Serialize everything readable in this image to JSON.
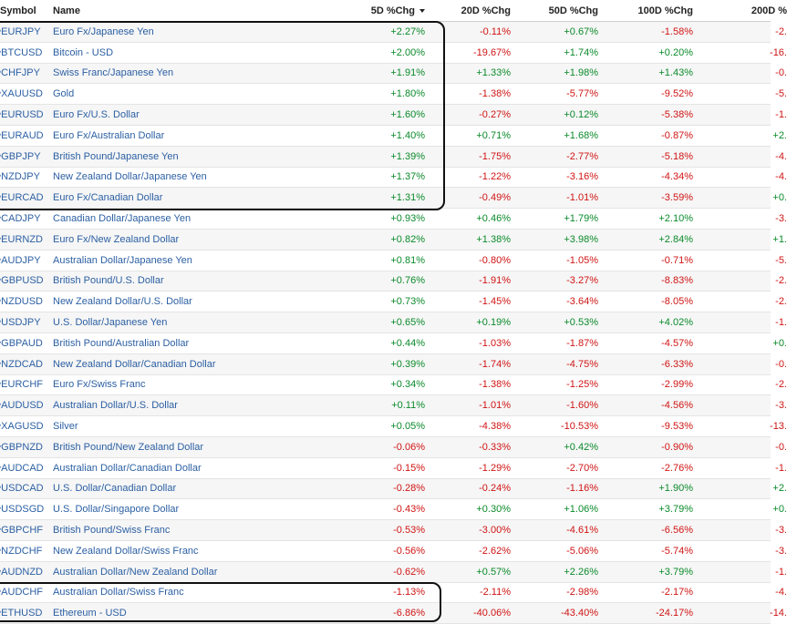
{
  "headers": {
    "symbol": "Symbol",
    "name": "Name",
    "chg5": "5D %Chg",
    "chg20": "20D %Chg",
    "chg50": "50D %Chg",
    "chg100": "100D %Chg",
    "chg200": "200D %"
  },
  "sort": {
    "column": "chg5",
    "direction": "desc"
  },
  "rows": [
    {
      "symbol": "^EURJPY",
      "name": "Euro Fx/Japanese Yen",
      "chg5": "+2.27%",
      "chg20": "-0.11%",
      "chg50": "+0.67%",
      "chg100": "-1.58%",
      "chg200": "-2."
    },
    {
      "symbol": "^BTCUSD",
      "name": "Bitcoin - USD",
      "chg5": "+2.00%",
      "chg20": "-19.67%",
      "chg50": "+1.74%",
      "chg100": "+0.20%",
      "chg200": "-16."
    },
    {
      "symbol": "^CHFJPY",
      "name": "Swiss Franc/Japanese Yen",
      "chg5": "+1.91%",
      "chg20": "+1.33%",
      "chg50": "+1.98%",
      "chg100": "+1.43%",
      "chg200": "-0."
    },
    {
      "symbol": "^XAUUSD",
      "name": "Gold",
      "chg5": "+1.80%",
      "chg20": "-1.38%",
      "chg50": "-5.77%",
      "chg100": "-9.52%",
      "chg200": "-5."
    },
    {
      "symbol": "^EURUSD",
      "name": "Euro Fx/U.S. Dollar",
      "chg5": "+1.60%",
      "chg20": "-0.27%",
      "chg50": "+0.12%",
      "chg100": "-5.38%",
      "chg200": "-1."
    },
    {
      "symbol": "^EURAUD",
      "name": "Euro Fx/Australian Dollar",
      "chg5": "+1.40%",
      "chg20": "+0.71%",
      "chg50": "+1.68%",
      "chg100": "-0.87%",
      "chg200": "+2."
    },
    {
      "symbol": "^GBPJPY",
      "name": "British Pound/Japanese Yen",
      "chg5": "+1.39%",
      "chg20": "-1.75%",
      "chg50": "-2.77%",
      "chg100": "-5.18%",
      "chg200": "-4."
    },
    {
      "symbol": "^NZDJPY",
      "name": "New Zealand Dollar/Japanese Yen",
      "chg5": "+1.37%",
      "chg20": "-1.22%",
      "chg50": "-3.16%",
      "chg100": "-4.34%",
      "chg200": "-4."
    },
    {
      "symbol": "^EURCAD",
      "name": "Euro Fx/Canadian Dollar",
      "chg5": "+1.31%",
      "chg20": "-0.49%",
      "chg50": "-1.01%",
      "chg100": "-3.59%",
      "chg200": "+0."
    },
    {
      "symbol": "^CADJPY",
      "name": "Canadian Dollar/Japanese Yen",
      "chg5": "+0.93%",
      "chg20": "+0.46%",
      "chg50": "+1.79%",
      "chg100": "+2.10%",
      "chg200": "-3."
    },
    {
      "symbol": "^EURNZD",
      "name": "Euro Fx/New Zealand Dollar",
      "chg5": "+0.82%",
      "chg20": "+1.38%",
      "chg50": "+3.98%",
      "chg100": "+2.84%",
      "chg200": "+1."
    },
    {
      "symbol": "^AUDJPY",
      "name": "Australian Dollar/Japanese Yen",
      "chg5": "+0.81%",
      "chg20": "-0.80%",
      "chg50": "-1.05%",
      "chg100": "-0.71%",
      "chg200": "-5."
    },
    {
      "symbol": "^GBPUSD",
      "name": "British Pound/U.S. Dollar",
      "chg5": "+0.76%",
      "chg20": "-1.91%",
      "chg50": "-3.27%",
      "chg100": "-8.83%",
      "chg200": "-2."
    },
    {
      "symbol": "^NZDUSD",
      "name": "New Zealand Dollar/U.S. Dollar",
      "chg5": "+0.73%",
      "chg20": "-1.45%",
      "chg50": "-3.64%",
      "chg100": "-8.05%",
      "chg200": "-2."
    },
    {
      "symbol": "^USDJPY",
      "name": "U.S. Dollar/Japanese Yen",
      "chg5": "+0.65%",
      "chg20": "+0.19%",
      "chg50": "+0.53%",
      "chg100": "+4.02%",
      "chg200": "-1."
    },
    {
      "symbol": "^GBPAUD",
      "name": "British Pound/Australian Dollar",
      "chg5": "+0.44%",
      "chg20": "-1.03%",
      "chg50": "-1.87%",
      "chg100": "-4.57%",
      "chg200": "+0."
    },
    {
      "symbol": "^NZDCAD",
      "name": "New Zealand Dollar/Canadian Dollar",
      "chg5": "+0.39%",
      "chg20": "-1.74%",
      "chg50": "-4.75%",
      "chg100": "-6.33%",
      "chg200": "-0."
    },
    {
      "symbol": "^EURCHF",
      "name": "Euro Fx/Swiss Franc",
      "chg5": "+0.34%",
      "chg20": "-1.38%",
      "chg50": "-1.25%",
      "chg100": "-2.99%",
      "chg200": "-2."
    },
    {
      "symbol": "^AUDUSD",
      "name": "Australian Dollar/U.S. Dollar",
      "chg5": "+0.11%",
      "chg20": "-1.01%",
      "chg50": "-1.60%",
      "chg100": "-4.56%",
      "chg200": "-3."
    },
    {
      "symbol": "^XAGUSD",
      "name": "Silver",
      "chg5": "+0.05%",
      "chg20": "-4.38%",
      "chg50": "-10.53%",
      "chg100": "-9.53%",
      "chg200": "-13."
    },
    {
      "symbol": "^GBPNZD",
      "name": "British Pound/New Zealand Dollar",
      "chg5": "-0.06%",
      "chg20": "-0.33%",
      "chg50": "+0.42%",
      "chg100": "-0.90%",
      "chg200": "-0."
    },
    {
      "symbol": "^AUDCAD",
      "name": "Australian Dollar/Canadian Dollar",
      "chg5": "-0.15%",
      "chg20": "-1.29%",
      "chg50": "-2.70%",
      "chg100": "-2.76%",
      "chg200": "-1."
    },
    {
      "symbol": "^USDCAD",
      "name": "U.S. Dollar/Canadian Dollar",
      "chg5": "-0.28%",
      "chg20": "-0.24%",
      "chg50": "-1.16%",
      "chg100": "+1.90%",
      "chg200": "+2."
    },
    {
      "symbol": "^USDSGD",
      "name": "U.S. Dollar/Singapore Dollar",
      "chg5": "-0.43%",
      "chg20": "+0.30%",
      "chg50": "+1.06%",
      "chg100": "+3.79%",
      "chg200": "+0."
    },
    {
      "symbol": "^GBPCHF",
      "name": "British Pound/Swiss Franc",
      "chg5": "-0.53%",
      "chg20": "-3.00%",
      "chg50": "-4.61%",
      "chg100": "-6.56%",
      "chg200": "-3."
    },
    {
      "symbol": "^NZDCHF",
      "name": "New Zealand Dollar/Swiss Franc",
      "chg5": "-0.56%",
      "chg20": "-2.62%",
      "chg50": "-5.06%",
      "chg100": "-5.74%",
      "chg200": "-3."
    },
    {
      "symbol": "^AUDNZD",
      "name": "Australian Dollar/New Zealand Dollar",
      "chg5": "-0.62%",
      "chg20": "+0.57%",
      "chg50": "+2.26%",
      "chg100": "+3.79%",
      "chg200": "-1."
    },
    {
      "symbol": "^AUDCHF",
      "name": "Australian Dollar/Swiss Franc",
      "chg5": "-1.13%",
      "chg20": "-2.11%",
      "chg50": "-2.98%",
      "chg100": "-2.17%",
      "chg200": "-4."
    },
    {
      "symbol": "^ETHUSD",
      "name": "Ethereum - USD",
      "chg5": "-6.86%",
      "chg20": "-40.06%",
      "chg50": "-43.40%",
      "chg100": "-24.17%",
      "chg200": "-14."
    }
  ],
  "colors": {
    "positive": "#0a8a2a",
    "negative": "#d01414",
    "link": "#2b5fa3",
    "highlight": "#111111"
  }
}
